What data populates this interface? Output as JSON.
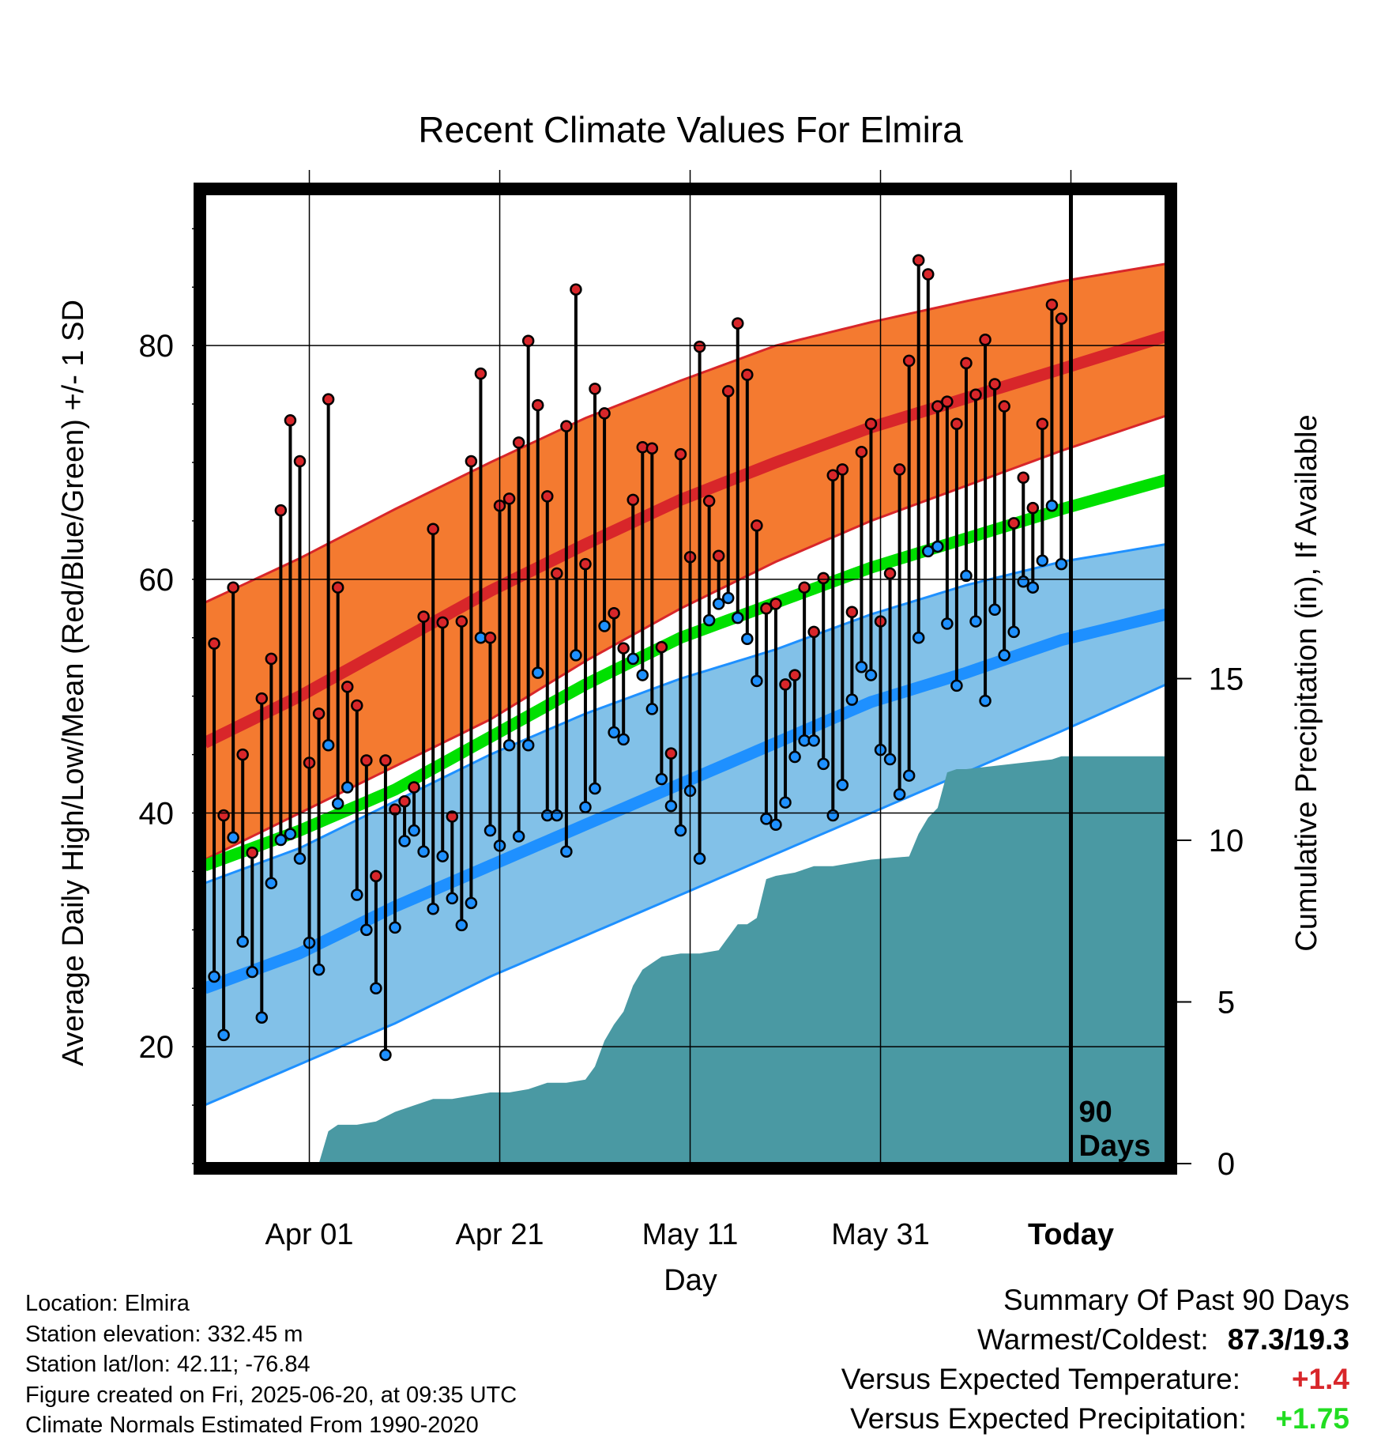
{
  "chart_data": {
    "type": "line",
    "title": "Recent Climate Values For Elmira",
    "xlabel": "Day",
    "ylabel_left": "Average Daily High/Low/Mean (Red/Blue/Green) +/- 1 SD",
    "ylabel_right": "Cumulative Precipitation (in), If Available",
    "x_tick_labels": [
      "Apr 01",
      "Apr 21",
      "May 11",
      "May 31",
      "Today"
    ],
    "x_tick_days": [
      11,
      31,
      51,
      71,
      91
    ],
    "x_range_days": [
      0,
      101
    ],
    "left_axis": {
      "ylim": [
        10,
        93
      ],
      "ticks": [
        20,
        40,
        60,
        80
      ]
    },
    "right_axis": {
      "ylim": [
        0,
        30
      ],
      "ticks": [
        0,
        5,
        10,
        15
      ]
    },
    "grid": true,
    "today_marker": {
      "day": 91,
      "label": "90 Days"
    },
    "colors": {
      "high_band": "#f47a30",
      "high_line": "#d8262a",
      "high_band_edge": "#d8262a",
      "low_band": "#82c1e8",
      "low_line": "#1e90ff",
      "low_band_edge": "#1e90ff",
      "mean_line": "#00e000",
      "precip_fill": "#4a99a3",
      "high_marker": "#d8262a",
      "low_marker": "#1e90ff"
    },
    "normals": {
      "days": [
        0,
        10,
        20,
        30,
        40,
        50,
        60,
        70,
        80,
        90,
        101
      ],
      "normal_high": [
        46.0,
        50.0,
        54.5,
        59.0,
        63.0,
        66.8,
        70.0,
        73.0,
        75.5,
        78.0,
        80.8
      ],
      "high_sd_upper": [
        58.0,
        61.8,
        66.0,
        70.0,
        73.8,
        77.0,
        80.0,
        82.0,
        83.8,
        85.5,
        87.0
      ],
      "high_sd_lower": [
        36.0,
        40.0,
        44.0,
        48.0,
        53.0,
        57.5,
        61.5,
        65.0,
        68.0,
        71.0,
        74.0
      ],
      "normal_mean": [
        35.5,
        38.5,
        42.0,
        46.5,
        51.0,
        55.0,
        58.0,
        61.0,
        63.5,
        66.0,
        68.5
      ],
      "normal_low": [
        25.0,
        28.0,
        32.0,
        35.5,
        39.0,
        42.5,
        46.0,
        49.5,
        52.0,
        54.8,
        57.0
      ],
      "low_sd_upper": [
        34.0,
        37.0,
        41.0,
        45.0,
        48.5,
        51.5,
        54.0,
        57.0,
        59.5,
        61.5,
        63.0
      ],
      "low_sd_lower": [
        15.0,
        18.5,
        22.0,
        26.0,
        29.5,
        33.0,
        36.5,
        40.0,
        43.5,
        47.0,
        51.0
      ]
    },
    "daily_high": [
      54.5,
      39.8,
      59.3,
      45.0,
      36.6,
      49.8,
      53.2,
      65.9,
      73.6,
      70.1,
      44.3,
      48.5,
      75.4,
      59.3,
      50.8,
      49.2,
      44.5,
      34.6,
      44.5,
      40.3,
      41.0,
      42.2,
      56.8,
      64.3,
      56.3,
      39.7,
      56.4,
      70.1,
      77.6,
      55.0,
      66.3,
      66.9,
      71.7,
      80.4,
      74.9,
      67.1,
      60.5,
      73.1,
      84.8,
      61.3,
      76.3,
      74.2,
      57.1,
      54.1,
      66.8,
      71.3,
      71.2,
      54.2,
      45.1,
      70.7,
      61.9,
      79.9,
      66.7,
      62.0,
      76.1,
      81.9,
      77.5,
      64.6,
      57.5,
      57.9,
      51.0,
      51.8,
      59.3,
      55.5,
      60.1,
      68.9,
      69.4,
      57.2,
      70.9,
      73.3,
      56.4,
      60.5,
      69.4,
      78.7,
      87.3,
      86.1,
      74.8,
      75.2,
      73.3,
      78.5,
      75.8,
      80.5,
      76.7,
      74.8,
      64.8,
      68.7,
      66.1,
      73.3,
      83.5,
      82.3
    ],
    "daily_low": [
      26.0,
      21.0,
      37.9,
      29.0,
      26.4,
      22.5,
      34.0,
      37.7,
      38.2,
      36.1,
      28.9,
      26.6,
      45.8,
      40.8,
      42.2,
      33.0,
      30.0,
      25.0,
      19.3,
      30.2,
      37.6,
      38.5,
      36.7,
      31.8,
      36.3,
      32.7,
      30.4,
      32.3,
      55.0,
      38.5,
      37.2,
      45.8,
      38.0,
      45.8,
      52.0,
      39.8,
      39.8,
      36.7,
      53.5,
      40.5,
      42.1,
      56.0,
      46.9,
      46.3,
      53.2,
      51.8,
      48.9,
      42.9,
      40.6,
      38.5,
      41.9,
      36.1,
      56.5,
      57.9,
      58.4,
      56.7,
      54.9,
      51.3,
      39.5,
      39.0,
      40.9,
      44.8,
      46.2,
      46.2,
      44.2,
      39.8,
      42.4,
      49.7,
      52.5,
      51.8,
      45.4,
      44.6,
      41.6,
      43.2,
      55.0,
      62.4,
      62.8,
      56.2,
      50.9,
      60.3,
      56.4,
      49.6,
      57.4,
      53.5,
      55.5,
      59.8,
      59.3,
      61.6,
      66.3,
      61.3
    ],
    "cumulative_precip": {
      "days": [
        0,
        12,
        13,
        14,
        16,
        18,
        20,
        22,
        24,
        26,
        28,
        30,
        32,
        34,
        36,
        38,
        40,
        41,
        42,
        43,
        44,
        45,
        46,
        47,
        48,
        50,
        52,
        54,
        55,
        56,
        57,
        58,
        59,
        60,
        62,
        64,
        66,
        68,
        70,
        74,
        75,
        76,
        77,
        78,
        79,
        80,
        83,
        86,
        89,
        90,
        101
      ],
      "values": [
        0.0,
        0.0,
        1.0,
        1.2,
        1.2,
        1.3,
        1.6,
        1.8,
        2.0,
        2.0,
        2.1,
        2.2,
        2.2,
        2.3,
        2.5,
        2.5,
        2.6,
        3.0,
        3.8,
        4.3,
        4.7,
        5.5,
        6.0,
        6.2,
        6.4,
        6.5,
        6.5,
        6.6,
        7.0,
        7.4,
        7.4,
        7.6,
        8.8,
        8.9,
        9.0,
        9.2,
        9.2,
        9.3,
        9.4,
        9.5,
        10.2,
        10.7,
        11.0,
        12.1,
        12.2,
        12.2,
        12.3,
        12.4,
        12.5,
        12.6,
        12.6
      ]
    }
  },
  "info": {
    "location": "Location: Elmira",
    "elevation": "Station elevation: 332.45 m",
    "latlon": "Station lat/lon: 42.11; -76.84",
    "created": "Figure created on Fri, 2025-06-20, at 09:35 UTC",
    "normals": "Climate Normals Estimated From 1990-2020"
  },
  "summary": {
    "title": "Summary Of Past 90 Days",
    "warmest_label": "Warmest/Coldest:",
    "warmest_value": "87.3/19.3",
    "temp_label": "Versus Expected Temperature:",
    "temp_value": "+1.4",
    "temp_color": "#d8262a",
    "precip_label": "Versus Expected Precipitation:",
    "precip_value": "+1.75",
    "precip_color": "#22dd22"
  }
}
